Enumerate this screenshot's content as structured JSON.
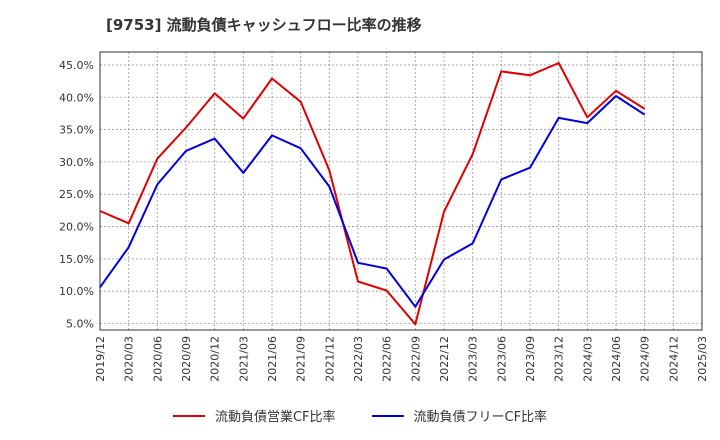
{
  "chart_data": {
    "type": "line",
    "title": "[9753]  流動負債キャッシュフロー比率の推移",
    "xlabel": "",
    "ylabel": "",
    "ylim": [
      4,
      47
    ],
    "yticks": [
      "5.0%",
      "10.0%",
      "15.0%",
      "20.0%",
      "25.0%",
      "30.0%",
      "35.0%",
      "40.0%",
      "45.0%"
    ],
    "ytick_values": [
      5,
      10,
      15,
      20,
      25,
      30,
      35,
      40,
      45
    ],
    "categories": [
      "2019/12",
      "2020/03",
      "2020/06",
      "2020/09",
      "2020/12",
      "2021/03",
      "2021/06",
      "2021/09",
      "2021/12",
      "2022/03",
      "2022/06",
      "2022/09",
      "2022/12",
      "2023/03",
      "2023/06",
      "2023/09",
      "2023/12",
      "2024/03",
      "2024/06",
      "2024/09",
      "2024/12",
      "2025/03"
    ],
    "grid": true,
    "legend_position": "bottom",
    "series": [
      {
        "name": "流動負債営業CF比率",
        "color": "#e00000",
        "values": [
          22.4,
          20.5,
          30.5,
          35.3,
          40.6,
          36.7,
          42.9,
          39.3,
          28.7,
          11.5,
          10.1,
          4.9,
          22.3,
          31.2,
          44.0,
          43.4,
          45.3,
          36.9,
          41.0,
          38.2,
          null,
          null
        ]
      },
      {
        "name": "流動負債フリーCF比率",
        "color": "#0000e0",
        "values": [
          10.6,
          16.8,
          26.5,
          31.7,
          33.6,
          28.3,
          34.1,
          32.1,
          26.2,
          14.4,
          13.5,
          7.6,
          14.9,
          17.4,
          27.3,
          29.1,
          36.8,
          36.0,
          40.2,
          37.3,
          null,
          null
        ]
      }
    ]
  }
}
